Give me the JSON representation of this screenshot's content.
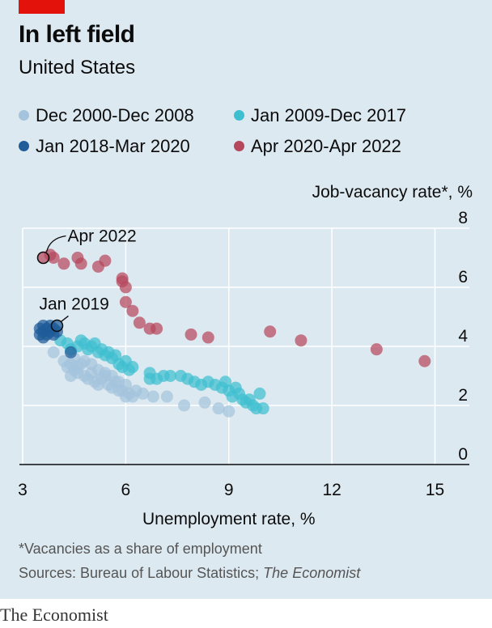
{
  "header": {
    "title": "In left field",
    "subtitle": "United States"
  },
  "footer": {
    "footnote": "*Vacancies as a share of employment",
    "source_prefix": "Sources: Bureau of Labour Statistics; ",
    "source_italic": "The Economist",
    "brand": "The Economist"
  },
  "colors": {
    "accent_red": "#e3120b",
    "panel_bg": "#dde9f1"
  },
  "chart_data": {
    "type": "scatter",
    "title": "In left field",
    "subtitle": "United States",
    "xlabel": "Unemployment rate, %",
    "ylabel": "Job-vacancy rate*, %",
    "xlim": [
      3,
      16
    ],
    "ylim": [
      0,
      8
    ],
    "xticks": [
      3,
      6,
      9,
      12,
      15
    ],
    "yticks": [
      0,
      2,
      4,
      6,
      8
    ],
    "grid": true,
    "legend_position": "top",
    "annotations": [
      {
        "label": "Apr 2022",
        "x": 3.6,
        "y": 7.0
      },
      {
        "label": "Jan 2019",
        "x": 4.0,
        "y": 4.7
      }
    ],
    "series": [
      {
        "name": "Dec 2000-Dec 2008",
        "color": "#a3c4dc",
        "points": [
          [
            3.9,
            3.8
          ],
          [
            4.2,
            3.5
          ],
          [
            4.3,
            3.3
          ],
          [
            4.5,
            3.2
          ],
          [
            4.4,
            3.0
          ],
          [
            4.6,
            3.1
          ],
          [
            4.7,
            3.4
          ],
          [
            4.8,
            3.0
          ],
          [
            4.9,
            2.9
          ],
          [
            5.0,
            3.1
          ],
          [
            5.1,
            2.8
          ],
          [
            5.2,
            2.7
          ],
          [
            5.3,
            2.9
          ],
          [
            5.4,
            3.0
          ],
          [
            5.5,
            2.7
          ],
          [
            5.6,
            2.6
          ],
          [
            5.7,
            2.8
          ],
          [
            5.8,
            2.5
          ],
          [
            5.9,
            2.5
          ],
          [
            6.0,
            2.3
          ],
          [
            6.1,
            2.4
          ],
          [
            6.2,
            2.3
          ],
          [
            6.3,
            2.5
          ],
          [
            6.5,
            2.4
          ],
          [
            6.8,
            2.3
          ],
          [
            7.2,
            2.3
          ],
          [
            7.7,
            2.0
          ],
          [
            8.3,
            2.1
          ],
          [
            8.7,
            1.9
          ],
          [
            9.0,
            1.8
          ],
          [
            4.5,
            3.6
          ],
          [
            4.8,
            3.5
          ],
          [
            5.0,
            3.4
          ],
          [
            5.2,
            3.2
          ],
          [
            5.4,
            3.1
          ],
          [
            5.6,
            3.0
          ],
          [
            5.8,
            2.8
          ],
          [
            6.0,
            2.7
          ],
          [
            4.6,
            3.3
          ],
          [
            4.4,
            3.4
          ]
        ]
      },
      {
        "name": "Jan 2009-Dec 2017",
        "color": "#3ebfd0",
        "points": [
          [
            4.1,
            4.2
          ],
          [
            4.3,
            4.1
          ],
          [
            4.4,
            3.9
          ],
          [
            4.6,
            4.0
          ],
          [
            4.7,
            4.2
          ],
          [
            4.8,
            4.1
          ],
          [
            4.9,
            3.9
          ],
          [
            5.0,
            4.0
          ],
          [
            5.1,
            4.1
          ],
          [
            5.2,
            3.8
          ],
          [
            5.3,
            3.9
          ],
          [
            5.4,
            3.7
          ],
          [
            5.5,
            3.8
          ],
          [
            5.6,
            3.6
          ],
          [
            5.7,
            3.7
          ],
          [
            5.8,
            3.4
          ],
          [
            5.9,
            3.3
          ],
          [
            6.0,
            3.5
          ],
          [
            6.1,
            3.2
          ],
          [
            6.2,
            3.3
          ],
          [
            6.7,
            3.1
          ],
          [
            6.9,
            2.9
          ],
          [
            7.3,
            3.0
          ],
          [
            7.6,
            3.0
          ],
          [
            7.8,
            2.9
          ],
          [
            8.0,
            2.8
          ],
          [
            8.2,
            2.7
          ],
          [
            8.4,
            2.8
          ],
          [
            8.6,
            2.7
          ],
          [
            8.9,
            2.8
          ],
          [
            9.0,
            2.5
          ],
          [
            9.1,
            2.3
          ],
          [
            9.3,
            2.4
          ],
          [
            9.4,
            2.2
          ],
          [
            9.5,
            2.1
          ],
          [
            9.6,
            2.2
          ],
          [
            9.7,
            2.0
          ],
          [
            9.8,
            1.9
          ],
          [
            9.9,
            2.4
          ],
          [
            10.0,
            1.9
          ],
          [
            8.8,
            2.6
          ],
          [
            9.2,
            2.6
          ],
          [
            7.1,
            3.0
          ],
          [
            6.7,
            2.9
          ]
        ]
      },
      {
        "name": "Jan 2018-Mar 2020",
        "color": "#1f5c99",
        "points": [
          [
            3.5,
            4.6
          ],
          [
            3.6,
            4.5
          ],
          [
            3.6,
            4.7
          ],
          [
            3.7,
            4.6
          ],
          [
            3.7,
            4.4
          ],
          [
            3.8,
            4.5
          ],
          [
            3.8,
            4.7
          ],
          [
            3.9,
            4.6
          ],
          [
            3.9,
            4.4
          ],
          [
            4.0,
            4.7
          ],
          [
            4.0,
            4.5
          ],
          [
            3.5,
            4.4
          ],
          [
            3.6,
            4.3
          ],
          [
            4.4,
            3.8
          ]
        ]
      },
      {
        "name": "Apr 2020-Apr 2022",
        "color": "#b5485d",
        "points": [
          [
            3.6,
            7.0
          ],
          [
            3.8,
            7.1
          ],
          [
            3.9,
            7.0
          ],
          [
            4.2,
            6.8
          ],
          [
            4.6,
            7.0
          ],
          [
            4.7,
            6.8
          ],
          [
            5.2,
            6.7
          ],
          [
            5.4,
            6.9
          ],
          [
            5.9,
            6.2
          ],
          [
            5.9,
            6.3
          ],
          [
            6.0,
            6.0
          ],
          [
            6.0,
            5.5
          ],
          [
            6.2,
            5.2
          ],
          [
            6.4,
            4.8
          ],
          [
            6.7,
            4.6
          ],
          [
            6.9,
            4.6
          ],
          [
            7.9,
            4.4
          ],
          [
            8.4,
            4.3
          ],
          [
            10.2,
            4.5
          ],
          [
            11.1,
            4.2
          ],
          [
            13.3,
            3.9
          ],
          [
            14.7,
            3.5
          ]
        ]
      }
    ]
  }
}
